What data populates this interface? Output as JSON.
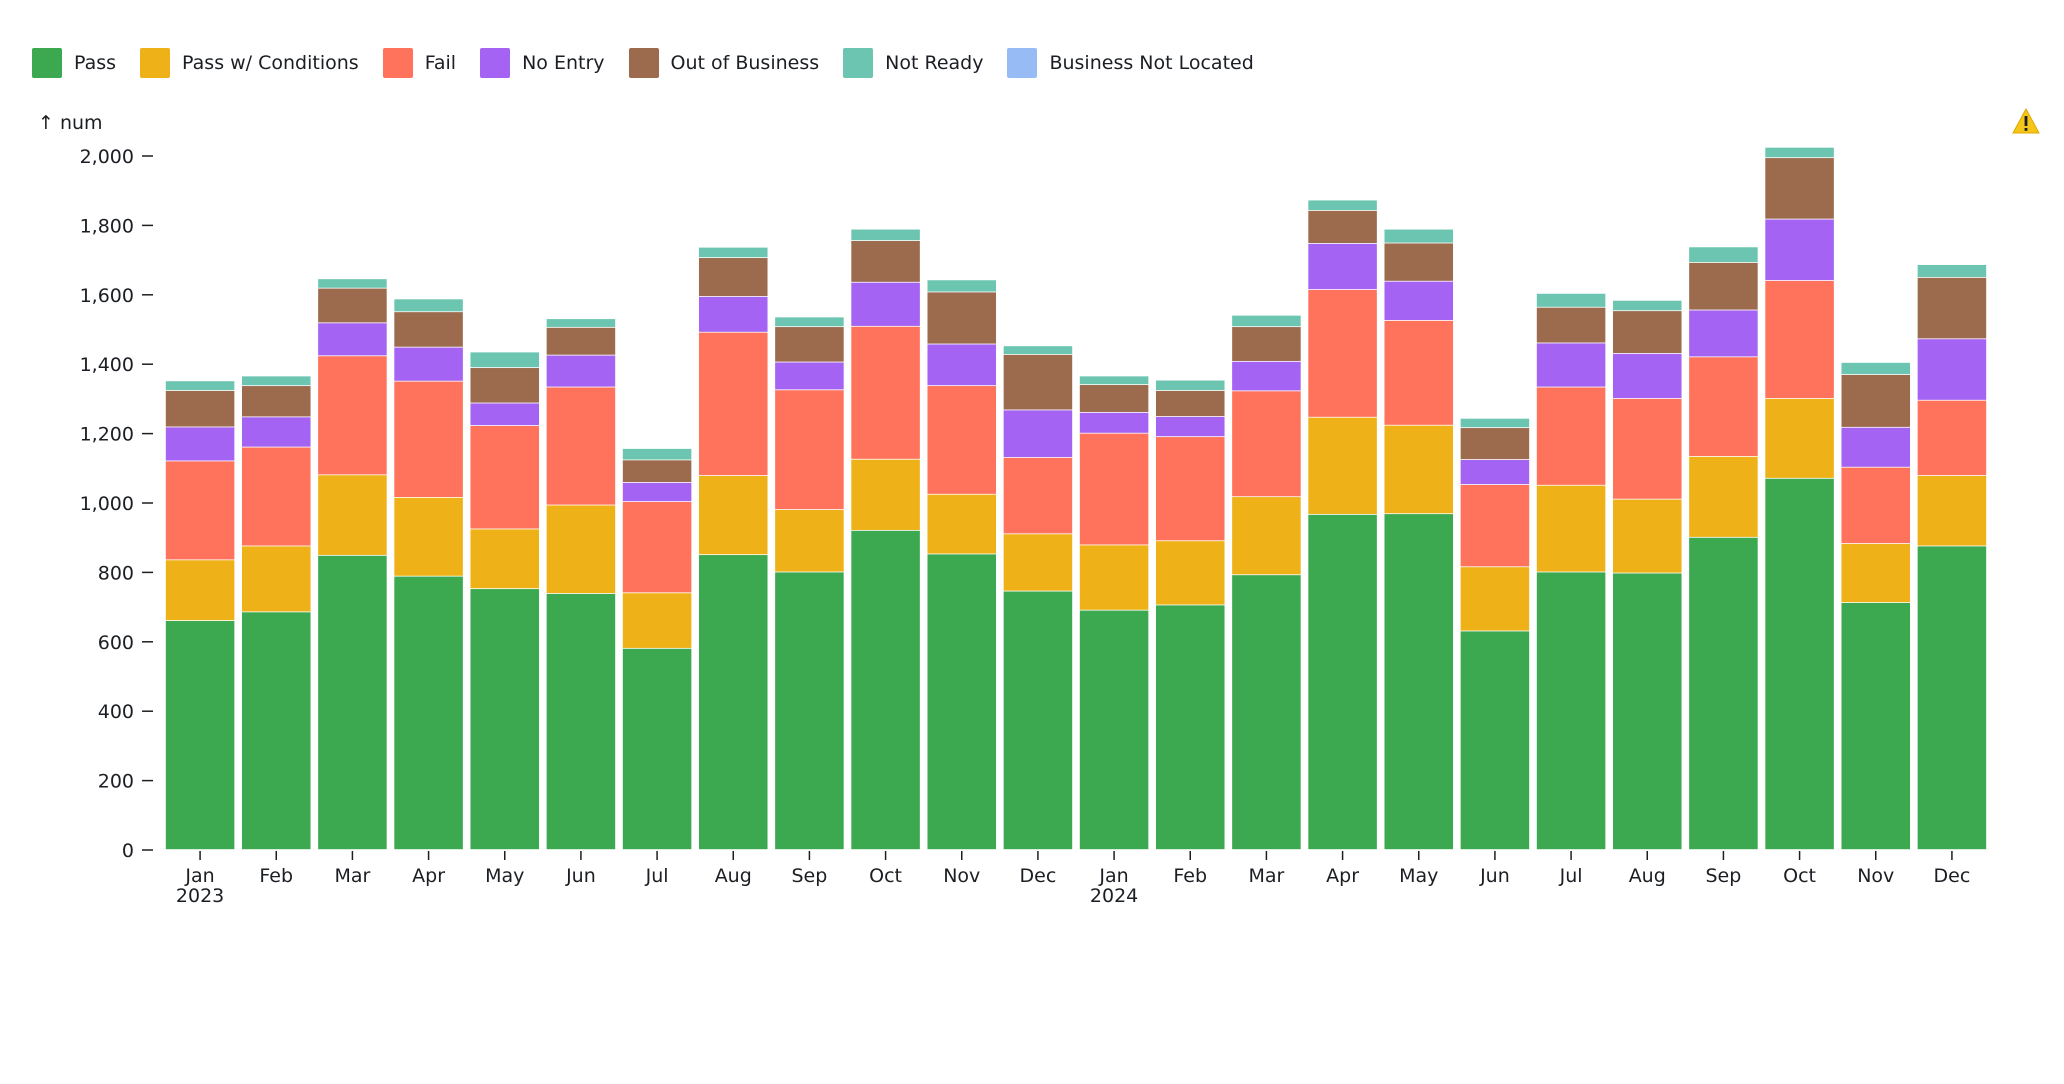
{
  "chart_data": {
    "type": "bar",
    "stacked": true,
    "title": "",
    "xlabel": "",
    "ylabel": "↑ num",
    "ylim": [
      0,
      2100
    ],
    "yticks": [
      0,
      200,
      400,
      600,
      800,
      1000,
      1200,
      1400,
      1600,
      1800,
      2000
    ],
    "ytick_labels": [
      "0",
      "200",
      "400",
      "600",
      "800",
      "1,000",
      "1,200",
      "1,400",
      "1,600",
      "1,800",
      "2,000"
    ],
    "categories": [
      "Jan 2023",
      "Feb 2023",
      "Mar 2023",
      "Apr 2023",
      "May 2023",
      "Jun 2023",
      "Jul 2023",
      "Aug 2023",
      "Sep 2023",
      "Oct 2023",
      "Nov 2023",
      "Dec 2023",
      "Jan 2024",
      "Feb 2024",
      "Mar 2024",
      "Apr 2024",
      "May 2024",
      "Jun 2024",
      "Jul 2024",
      "Aug 2024",
      "Sep 2024",
      "Oct 2024",
      "Nov 2024",
      "Dec 2024"
    ],
    "month_labels": [
      "Jan",
      "Feb",
      "Mar",
      "Apr",
      "May",
      "Jun",
      "Jul",
      "Aug",
      "Sep",
      "Oct",
      "Nov",
      "Dec",
      "Jan",
      "Feb",
      "Mar",
      "Apr",
      "May",
      "Jun",
      "Jul",
      "Aug",
      "Sep",
      "Oct",
      "Nov",
      "Dec"
    ],
    "year_labels": [
      "2023",
      "",
      "",
      "",
      "",
      "",
      "",
      "",
      "",
      "",
      "",
      "",
      "2024",
      "",
      "",
      "",
      "",
      "",
      "",
      "",
      "",
      "",
      "",
      ""
    ],
    "series": [
      {
        "name": "Pass",
        "color": "#3ca951",
        "values": [
          660,
          685,
          848,
          788,
          752,
          738,
          580,
          850,
          800,
          920,
          852,
          745,
          690,
          705,
          792,
          966,
          968,
          630,
          800,
          797,
          900,
          1070,
          712,
          875
        ]
      },
      {
        "name": "Pass w/ Conditions",
        "color": "#efb118",
        "values": [
          175,
          190,
          232,
          227,
          172,
          255,
          160,
          228,
          180,
          205,
          172,
          165,
          188,
          185,
          225,
          280,
          255,
          185,
          250,
          213,
          233,
          230,
          170,
          203
        ]
      },
      {
        "name": "Fail",
        "color": "#ff725c",
        "values": [
          285,
          285,
          343,
          335,
          298,
          340,
          263,
          413,
          345,
          383,
          313,
          220,
          322,
          300,
          305,
          368,
          302,
          237,
          283,
          290,
          287,
          340,
          220,
          217
        ]
      },
      {
        "name": "No Entry",
        "color": "#a463f2",
        "values": [
          98,
          87,
          95,
          98,
          65,
          92,
          55,
          103,
          80,
          127,
          120,
          137,
          60,
          58,
          85,
          133,
          113,
          72,
          127,
          130,
          135,
          177,
          115,
          177
        ]
      },
      {
        "name": "Out of Business",
        "color": "#9c6b4e",
        "values": [
          105,
          90,
          100,
          102,
          102,
          80,
          65,
          112,
          102,
          120,
          150,
          160,
          80,
          75,
          100,
          95,
          110,
          92,
          103,
          123,
          137,
          177,
          152,
          177
        ]
      },
      {
        "name": "Not Ready",
        "color": "#6cc5b0",
        "values": [
          28,
          28,
          27,
          37,
          45,
          25,
          33,
          30,
          28,
          33,
          35,
          25,
          25,
          30,
          33,
          30,
          40,
          27,
          40,
          30,
          45,
          30,
          35,
          37
        ]
      },
      {
        "name": "Business Not Located",
        "color": "#97bbf5",
        "values": [
          0,
          0,
          0,
          0,
          0,
          0,
          0,
          0,
          0,
          0,
          0,
          0,
          0,
          0,
          0,
          0,
          0,
          0,
          0,
          0,
          0,
          0,
          0,
          0
        ]
      }
    ],
    "legend_position": "top-left",
    "grid": false
  },
  "icons": {
    "warning": "warning-icon"
  }
}
